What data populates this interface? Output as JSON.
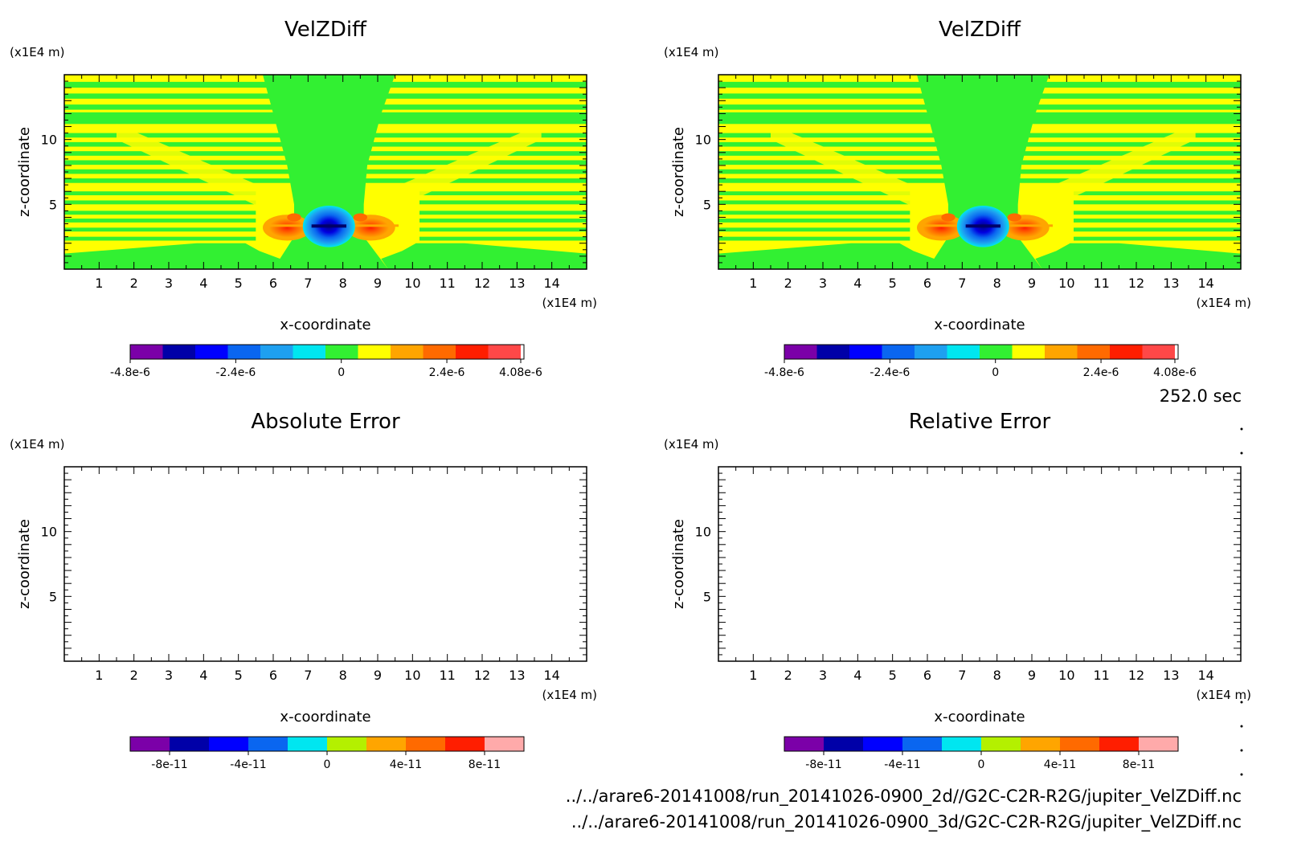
{
  "time_label": "252.0 sec",
  "footer": {
    "path_2d": "../../arare6-20141008/run_20141026-0900_2d//G2C-C2R-R2G/jupiter_VelZDiff.nc",
    "path_3d": "../../arare6-20141008/run_20141026-0900_3d/G2C-C2R-R2G/jupiter_VelZDiff.nc"
  },
  "chart_data": [
    {
      "type": "heatmap",
      "title": "VelZDiff",
      "xlabel": "x-coordinate",
      "ylabel": "z-coordinate",
      "x_unit": "(x1E4 m)",
      "y_unit": "(x1E4 m)",
      "xlim": [
        0,
        15
      ],
      "ylim": [
        0,
        15
      ],
      "xticks": [
        "1",
        "2",
        "3",
        "4",
        "5",
        "6",
        "7",
        "8",
        "9",
        "10",
        "11",
        "12",
        "13",
        "14"
      ],
      "yticks": [
        "5",
        "10"
      ],
      "colorbar": {
        "colors": [
          "#7b00a8",
          "#0000a8",
          "#0000ff",
          "#0a66f0",
          "#1ea0f0",
          "#00e6f0",
          "#32f032",
          "#ffff00",
          "#ffa500",
          "#ff6a00",
          "#ff1e00",
          "#ff4848",
          "#ffffff"
        ],
        "labels": [
          "-4.8e-6",
          "-2.4e-6",
          "0",
          "2.4e-6",
          "4.08e-6"
        ],
        "range": [
          -4.8e-06,
          4.08e-06
        ]
      }
    },
    {
      "type": "heatmap",
      "title": "VelZDiff",
      "xlabel": "x-coordinate",
      "ylabel": "z-coordinate",
      "x_unit": "(x1E4 m)",
      "y_unit": "(x1E4 m)",
      "xlim": [
        0,
        15
      ],
      "ylim": [
        0,
        15
      ],
      "xticks": [
        "1",
        "2",
        "3",
        "4",
        "5",
        "6",
        "7",
        "8",
        "9",
        "10",
        "11",
        "12",
        "13",
        "14"
      ],
      "yticks": [
        "5",
        "10"
      ],
      "colorbar": {
        "colors": [
          "#7b00a8",
          "#0000a8",
          "#0000ff",
          "#0a66f0",
          "#1ea0f0",
          "#00e6f0",
          "#32f032",
          "#ffff00",
          "#ffa500",
          "#ff6a00",
          "#ff1e00",
          "#ff4848",
          "#ffffff"
        ],
        "labels": [
          "-4.8e-6",
          "-2.4e-6",
          "0",
          "2.4e-6",
          "4.08e-6"
        ],
        "range": [
          -4.8e-06,
          4.08e-06
        ]
      }
    },
    {
      "type": "heatmap",
      "title": "Absolute Error",
      "xlabel": "x-coordinate",
      "ylabel": "z-coordinate",
      "x_unit": "(x1E4 m)",
      "y_unit": "(x1E4 m)",
      "xlim": [
        0,
        15
      ],
      "ylim": [
        0,
        15
      ],
      "xticks": [
        "1",
        "2",
        "3",
        "4",
        "5",
        "6",
        "7",
        "8",
        "9",
        "10",
        "11",
        "12",
        "13",
        "14"
      ],
      "yticks": [
        "5",
        "10"
      ],
      "colorbar": {
        "colors": [
          "#7b00a8",
          "#0000a8",
          "#0000ff",
          "#0a66f0",
          "#00e6f0",
          "#b4f000",
          "#ffa500",
          "#ff6a00",
          "#ff1e00",
          "#ffaaaa"
        ],
        "labels": [
          "-8e-11",
          "-4e-11",
          "0",
          "4e-11",
          "8e-11"
        ],
        "range": [
          -1e-10,
          1e-10
        ]
      }
    },
    {
      "type": "heatmap",
      "title": "Relative Error",
      "xlabel": "x-coordinate",
      "ylabel": "z-coordinate",
      "x_unit": "(x1E4 m)",
      "y_unit": "(x1E4 m)",
      "xlim": [
        0,
        15
      ],
      "ylim": [
        0,
        15
      ],
      "xticks": [
        "1",
        "2",
        "3",
        "4",
        "5",
        "6",
        "7",
        "8",
        "9",
        "10",
        "11",
        "12",
        "13",
        "14"
      ],
      "yticks": [
        "5",
        "10"
      ],
      "colorbar": {
        "colors": [
          "#7b00a8",
          "#0000a8",
          "#0000ff",
          "#0a66f0",
          "#00e6f0",
          "#b4f000",
          "#ffa500",
          "#ff6a00",
          "#ff1e00",
          "#ffaaaa"
        ],
        "labels": [
          "-8e-11",
          "-4e-11",
          "0",
          "4e-11",
          "8e-11"
        ],
        "range": [
          -1e-10,
          1e-10
        ]
      }
    }
  ]
}
